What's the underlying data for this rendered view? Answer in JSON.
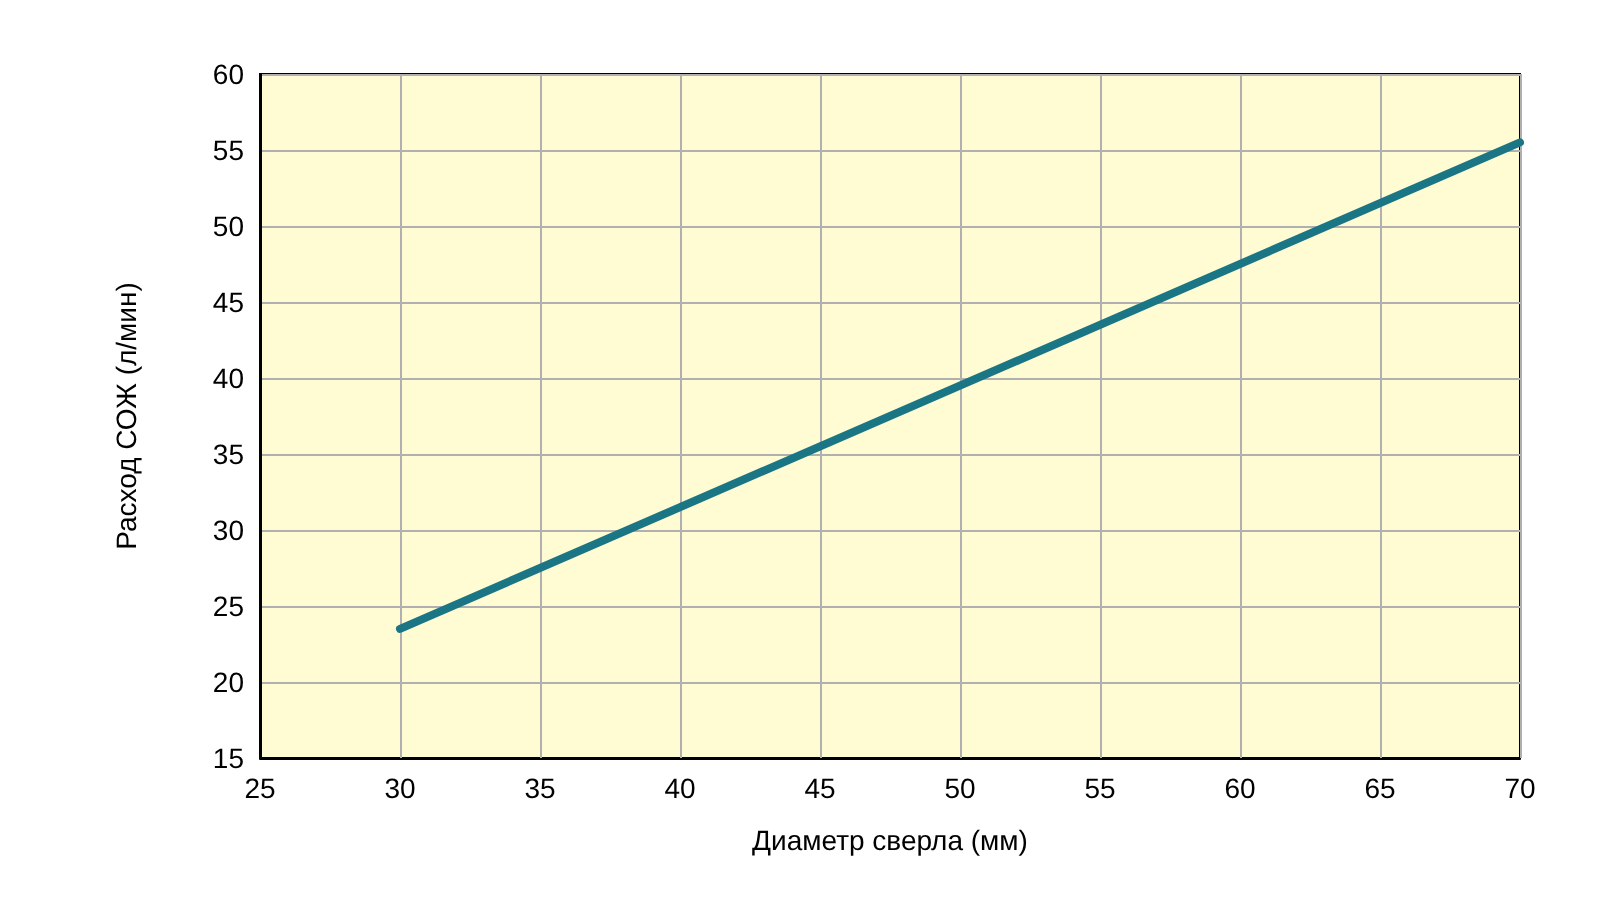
{
  "chart_data": {
    "type": "line",
    "xlabel": "Диаметр сверла (мм)",
    "ylabel": "Расход СОЖ (л/мин)",
    "x": [
      30,
      70
    ],
    "series": [
      {
        "color": "#1a7585",
        "values": [
          23.5,
          55.5
        ]
      }
    ],
    "xlim": [
      25,
      70
    ],
    "xticks": [
      25,
      30,
      35,
      40,
      45,
      50,
      55,
      60,
      65,
      70
    ],
    "ylim": [
      15,
      60
    ],
    "yticks": [
      15,
      20,
      25,
      30,
      35,
      40,
      45,
      50,
      55,
      60
    ],
    "grid": true,
    "marker": "none",
    "line_style": "solid"
  }
}
